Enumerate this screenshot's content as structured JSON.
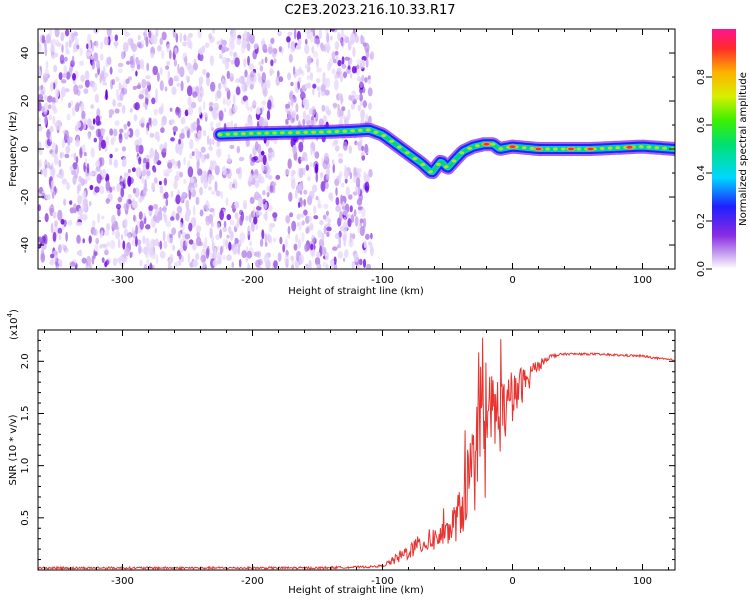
{
  "title": "C2E3.2023.216.10.33.R17",
  "chart_data": [
    {
      "type": "heatmap",
      "name": "spectrogram",
      "xlabel": "Height of straight line (km)",
      "ylabel": "Frequency (Hz)",
      "xlim": [
        -365,
        125
      ],
      "ylim": [
        -50,
        50
      ],
      "xticks": [
        -300,
        -200,
        -100,
        0,
        100
      ],
      "yticks": [
        -40,
        -20,
        0,
        20,
        40
      ],
      "colorbar": {
        "label": "Normalized spectral amplitude",
        "range": [
          0.0,
          1.0
        ],
        "ticks": [
          0.0,
          0.2,
          0.4,
          0.6,
          0.8
        ]
      },
      "noise_region": {
        "x": [
          -365,
          -108
        ],
        "y": [
          -50,
          50
        ],
        "gap_x": [
          -182,
          -174
        ]
      },
      "ridge": {
        "x": [
          -225,
          -200,
          -150,
          -125,
          -110,
          -100,
          -90,
          -80,
          -70,
          -62,
          -55,
          -50,
          -45,
          -38,
          -30,
          -22,
          -15,
          -10,
          0,
          20,
          60,
          100,
          125
        ],
        "y": [
          6,
          6.5,
          7,
          7.5,
          8,
          6,
          2,
          -2,
          -6,
          -10,
          -5,
          -8,
          -5,
          -1,
          1,
          2,
          2,
          0,
          1,
          0,
          0,
          1,
          0
        ],
        "peak_amplitude_x": [
          -20,
          0,
          20,
          45,
          60,
          90
        ]
      }
    },
    {
      "type": "line",
      "name": "snr",
      "xlabel": "Height of straight line (km)",
      "ylabel": "SNR (10 * v/v)",
      "exponent_label": "(x10",
      "exponent": "4",
      "exponent_suffix": ")",
      "xlim": [
        -365,
        125
      ],
      "ylim": [
        0.0,
        2.3
      ],
      "xticks": [
        -300,
        -200,
        -100,
        0,
        100
      ],
      "yticks": [
        0.5,
        1.0,
        1.5,
        2.0
      ],
      "yticklabels": [
        "0.5",
        "1.0",
        "1.5",
        "2.0"
      ],
      "series": [
        {
          "name": "SNR",
          "color": "#e8332f",
          "x": [
            -365,
            -150,
            -110,
            -100,
            -90,
            -80,
            -70,
            -60,
            -50,
            -40,
            -35,
            -30,
            -25,
            -20,
            -15,
            -10,
            -5,
            0,
            5,
            10,
            15,
            20,
            25,
            30,
            40,
            50,
            60,
            80,
            100,
            110,
            125
          ],
          "y": [
            0.02,
            0.02,
            0.03,
            0.04,
            0.1,
            0.18,
            0.25,
            0.3,
            0.35,
            0.55,
            0.8,
            1.0,
            1.2,
            1.4,
            1.5,
            1.5,
            1.55,
            1.6,
            1.75,
            1.8,
            1.9,
            1.95,
            2.02,
            2.05,
            2.07,
            2.07,
            2.07,
            2.06,
            2.05,
            2.03,
            2.01
          ],
          "noise_amplitude": [
            0.01,
            0.01,
            0.01,
            0.01,
            0.05,
            0.08,
            0.1,
            0.12,
            0.14,
            0.25,
            0.4,
            0.5,
            0.5,
            0.45,
            0.45,
            0.4,
            0.3,
            0.25,
            0.2,
            0.15,
            0.1,
            0.06,
            0.03,
            0.02,
            0.01,
            0.01,
            0.01,
            0.01,
            0.01,
            0.01,
            0.01
          ]
        }
      ]
    }
  ]
}
